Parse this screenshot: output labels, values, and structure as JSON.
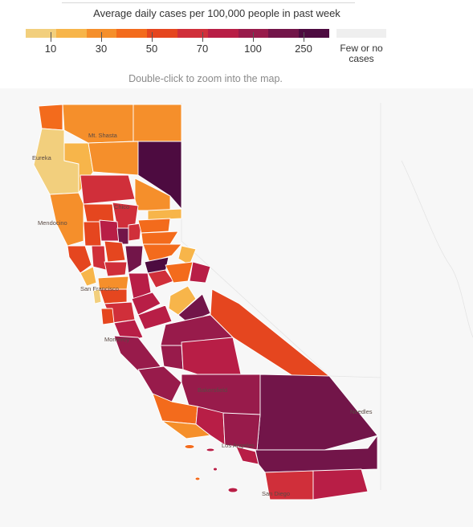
{
  "legend": {
    "title": "Average daily cases per 100,000 people in past week",
    "ticks": [
      "10",
      "30",
      "50",
      "70",
      "100",
      "250"
    ],
    "no_data_label": "Few or no cases",
    "colors": [
      "#f2cf7d",
      "#f7b54a",
      "#f58f2b",
      "#f36b1c",
      "#e5461f",
      "#d02f3a",
      "#b81e46",
      "#981b4b",
      "#721549",
      "#4d0b40"
    ],
    "no_data_color": "#efefef"
  },
  "hint": "Double-click to zoom into the map.",
  "map": {
    "cities": [
      "Mt. Shasta",
      "Eureka",
      "Chico",
      "Mendocino",
      "San Francisco",
      "Monterey",
      "Bakersfield",
      "Needles",
      "Los Angeles",
      "San Diego"
    ],
    "basemap_color": "#f3f3f3",
    "border_color": "#ffffff"
  }
}
